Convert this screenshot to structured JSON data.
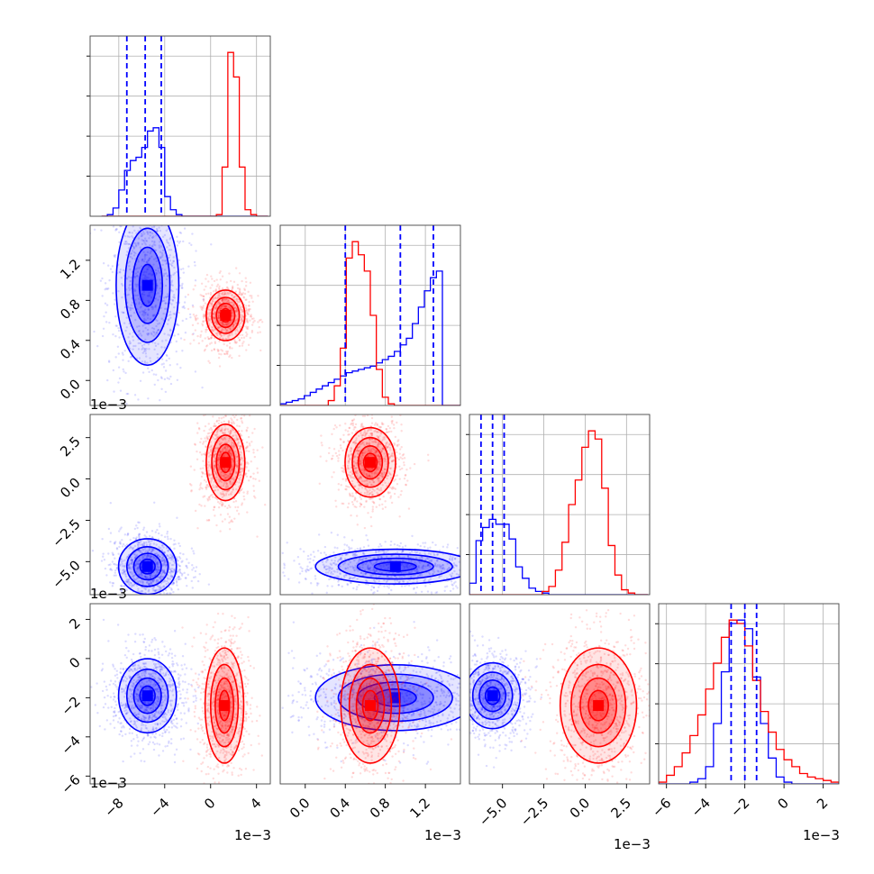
{
  "chart_data": {
    "type": "corner",
    "grid": true,
    "series": [
      {
        "color": "#0000ff"
      },
      {
        "color": "#ff0000"
      }
    ],
    "parameters": [
      {
        "range": [
          -10.5,
          5.2
        ],
        "ticks": [
          -8,
          -4,
          0,
          4
        ],
        "tick_labels": [
          "−8",
          "−4",
          "0",
          "4"
        ],
        "offset_label": "1e−3"
      },
      {
        "range": [
          -0.25,
          1.55
        ],
        "ticks": [
          0.0,
          0.4,
          0.8,
          1.2
        ],
        "tick_labels": [
          "0.0",
          "0.4",
          "0.8",
          "1.2"
        ],
        "offset_label": "1e−3"
      },
      {
        "range": [
          -7.0,
          3.9
        ],
        "ticks": [
          -5.0,
          -2.5,
          0.0,
          2.5
        ],
        "tick_labels": [
          "−5.0",
          "−2.5",
          "0.0",
          "2.5"
        ],
        "offset_label": "1e−3"
      },
      {
        "range": [
          -6.4,
          2.8
        ],
        "ticks": [
          -6,
          -4,
          -2,
          0,
          2
        ],
        "tick_labels": [
          "−6",
          "−4",
          "−2",
          "0",
          "2"
        ],
        "offset_label": "1e−3"
      }
    ],
    "quantiles": [
      [
        -7.3,
        -5.7,
        -4.3
      ],
      [
        0.4,
        0.95,
        1.28
      ],
      [
        -6.3,
        -5.6,
        -4.9
      ],
      [
        -2.7,
        -2.0,
        -1.4
      ]
    ],
    "histograms": [
      {
        "bins": [
          -9.5,
          -9.0,
          -8.5,
          -8.0,
          -7.5,
          -7.0,
          -6.5,
          -6.0,
          -5.5,
          -5.0,
          -4.5,
          -4.0,
          -3.5,
          -3.0,
          -2.5,
          -2.0,
          -1.5,
          -1.0,
          -0.5,
          0.0,
          0.5,
          1.0,
          1.5,
          2.0,
          2.5,
          3.0,
          3.5,
          4.0,
          4.5,
          5.0
        ],
        "blue": [
          0.0,
          0.01,
          0.05,
          0.16,
          0.28,
          0.34,
          0.36,
          0.42,
          0.52,
          0.54,
          0.42,
          0.12,
          0.04,
          0.01,
          0,
          0,
          0,
          0,
          0,
          0,
          0,
          0,
          0,
          0,
          0,
          0,
          0,
          0,
          0
        ],
        "red": [
          0,
          0,
          0,
          0,
          0,
          0,
          0,
          0,
          0,
          0,
          0,
          0,
          0,
          0,
          0,
          0,
          0,
          0,
          0,
          0.0,
          0.01,
          0.3,
          1.0,
          0.85,
          0.3,
          0.04,
          0.01,
          0.0,
          0
        ]
      },
      {
        "bins": [
          -0.25,
          -0.19,
          -0.13,
          -0.07,
          -0.01,
          0.05,
          0.11,
          0.17,
          0.23,
          0.29,
          0.35,
          0.41,
          0.47,
          0.53,
          0.59,
          0.65,
          0.71,
          0.77,
          0.83,
          0.89,
          0.95,
          1.01,
          1.07,
          1.13,
          1.19,
          1.25,
          1.31,
          1.37,
          1.43,
          1.49,
          1.55
        ],
        "blue": [
          0.01,
          0.02,
          0.03,
          0.04,
          0.06,
          0.08,
          0.1,
          0.12,
          0.14,
          0.16,
          0.18,
          0.2,
          0.21,
          0.22,
          0.23,
          0.24,
          0.26,
          0.28,
          0.3,
          0.33,
          0.37,
          0.41,
          0.5,
          0.6,
          0.7,
          0.78,
          0.82,
          0.0,
          0.0,
          0.0
        ],
        "red": [
          0,
          0,
          0,
          0,
          0,
          0,
          0,
          0,
          0.03,
          0.12,
          0.35,
          0.9,
          1.0,
          0.92,
          0.82,
          0.55,
          0.22,
          0.05,
          0.01,
          0.0,
          0,
          0,
          0,
          0,
          0,
          0,
          0,
          0,
          0,
          0
        ]
      },
      {
        "bins": [
          -7.0,
          -6.6,
          -6.2,
          -5.8,
          -5.4,
          -5.0,
          -4.6,
          -4.2,
          -3.8,
          -3.4,
          -3.0,
          -2.6,
          -2.2,
          -1.8,
          -1.4,
          -1.0,
          -0.6,
          -0.2,
          0.2,
          0.6,
          1.0,
          1.4,
          1.8,
          2.2,
          2.6,
          3.0,
          3.4,
          3.8
        ],
        "blue": [
          0.07,
          0.33,
          0.41,
          0.46,
          0.43,
          0.43,
          0.34,
          0.17,
          0.1,
          0.04,
          0.02,
          0.01,
          0.0,
          0,
          0,
          0,
          0,
          0,
          0,
          0,
          0,
          0,
          0,
          0,
          0,
          0,
          0
        ],
        "red": [
          0,
          0,
          0,
          0,
          0,
          0,
          0,
          0,
          0,
          0,
          0.0,
          0.02,
          0.05,
          0.15,
          0.32,
          0.55,
          0.7,
          0.9,
          1.0,
          0.95,
          0.65,
          0.3,
          0.12,
          0.03,
          0.01,
          0.0,
          0
        ]
      },
      {
        "bins": [
          -6.4,
          -6.0,
          -5.6,
          -5.2,
          -4.8,
          -4.4,
          -4.0,
          -3.6,
          -3.2,
          -2.8,
          -2.4,
          -2.0,
          -1.6,
          -1.2,
          -0.8,
          -0.4,
          0.0,
          0.4,
          0.8,
          1.2,
          1.6,
          2.0,
          2.4,
          2.8
        ],
        "blue": [
          0,
          0,
          0,
          0,
          0.01,
          0.03,
          0.1,
          0.35,
          0.65,
          0.93,
          0.95,
          0.9,
          0.62,
          0.35,
          0.15,
          0.04,
          0.01,
          0.0,
          0,
          0,
          0,
          0,
          0
        ],
        "red": [
          0.01,
          0.05,
          0.1,
          0.18,
          0.28,
          0.4,
          0.55,
          0.7,
          0.85,
          0.95,
          0.93,
          0.8,
          0.6,
          0.42,
          0.3,
          0.2,
          0.14,
          0.1,
          0.06,
          0.04,
          0.03,
          0.02,
          0.01
        ]
      }
    ],
    "clusters": [
      {
        "row": 1,
        "col": 0,
        "blue": {
          "cx": -5.5,
          "cy": 0.95,
          "sx": 1.3,
          "sy": 0.38
        },
        "red": {
          "cx": 1.3,
          "cy": 0.65,
          "sx": 0.8,
          "sy": 0.12
        }
      },
      {
        "row": 2,
        "col": 0,
        "blue": {
          "cx": -5.5,
          "cy": -5.3,
          "sx": 1.2,
          "sy": 0.8
        },
        "red": {
          "cx": 1.3,
          "cy": 1.0,
          "sx": 0.8,
          "sy": 1.1
        }
      },
      {
        "row": 2,
        "col": 1,
        "blue": {
          "cx": 0.9,
          "cy": -5.3,
          "sx": 0.38,
          "sy": 0.5
        },
        "red": {
          "cx": 0.65,
          "cy": 1.0,
          "sx": 0.12,
          "sy": 1.0
        }
      },
      {
        "row": 3,
        "col": 0,
        "blue": {
          "cx": -5.5,
          "cy": -1.9,
          "sx": 1.2,
          "sy": 0.9
        },
        "red": {
          "cx": 1.2,
          "cy": -2.4,
          "sx": 0.8,
          "sy": 1.4
        }
      },
      {
        "row": 3,
        "col": 1,
        "blue": {
          "cx": 0.9,
          "cy": -2.0,
          "sx": 0.38,
          "sy": 0.8
        },
        "red": {
          "cx": 0.65,
          "cy": -2.4,
          "sx": 0.14,
          "sy": 1.4
        }
      },
      {
        "row": 3,
        "col": 2,
        "blue": {
          "cx": -5.6,
          "cy": -1.9,
          "sx": 0.8,
          "sy": 0.8
        },
        "red": {
          "cx": 0.8,
          "cy": -2.4,
          "sx": 1.1,
          "sy": 1.4
        }
      }
    ]
  }
}
